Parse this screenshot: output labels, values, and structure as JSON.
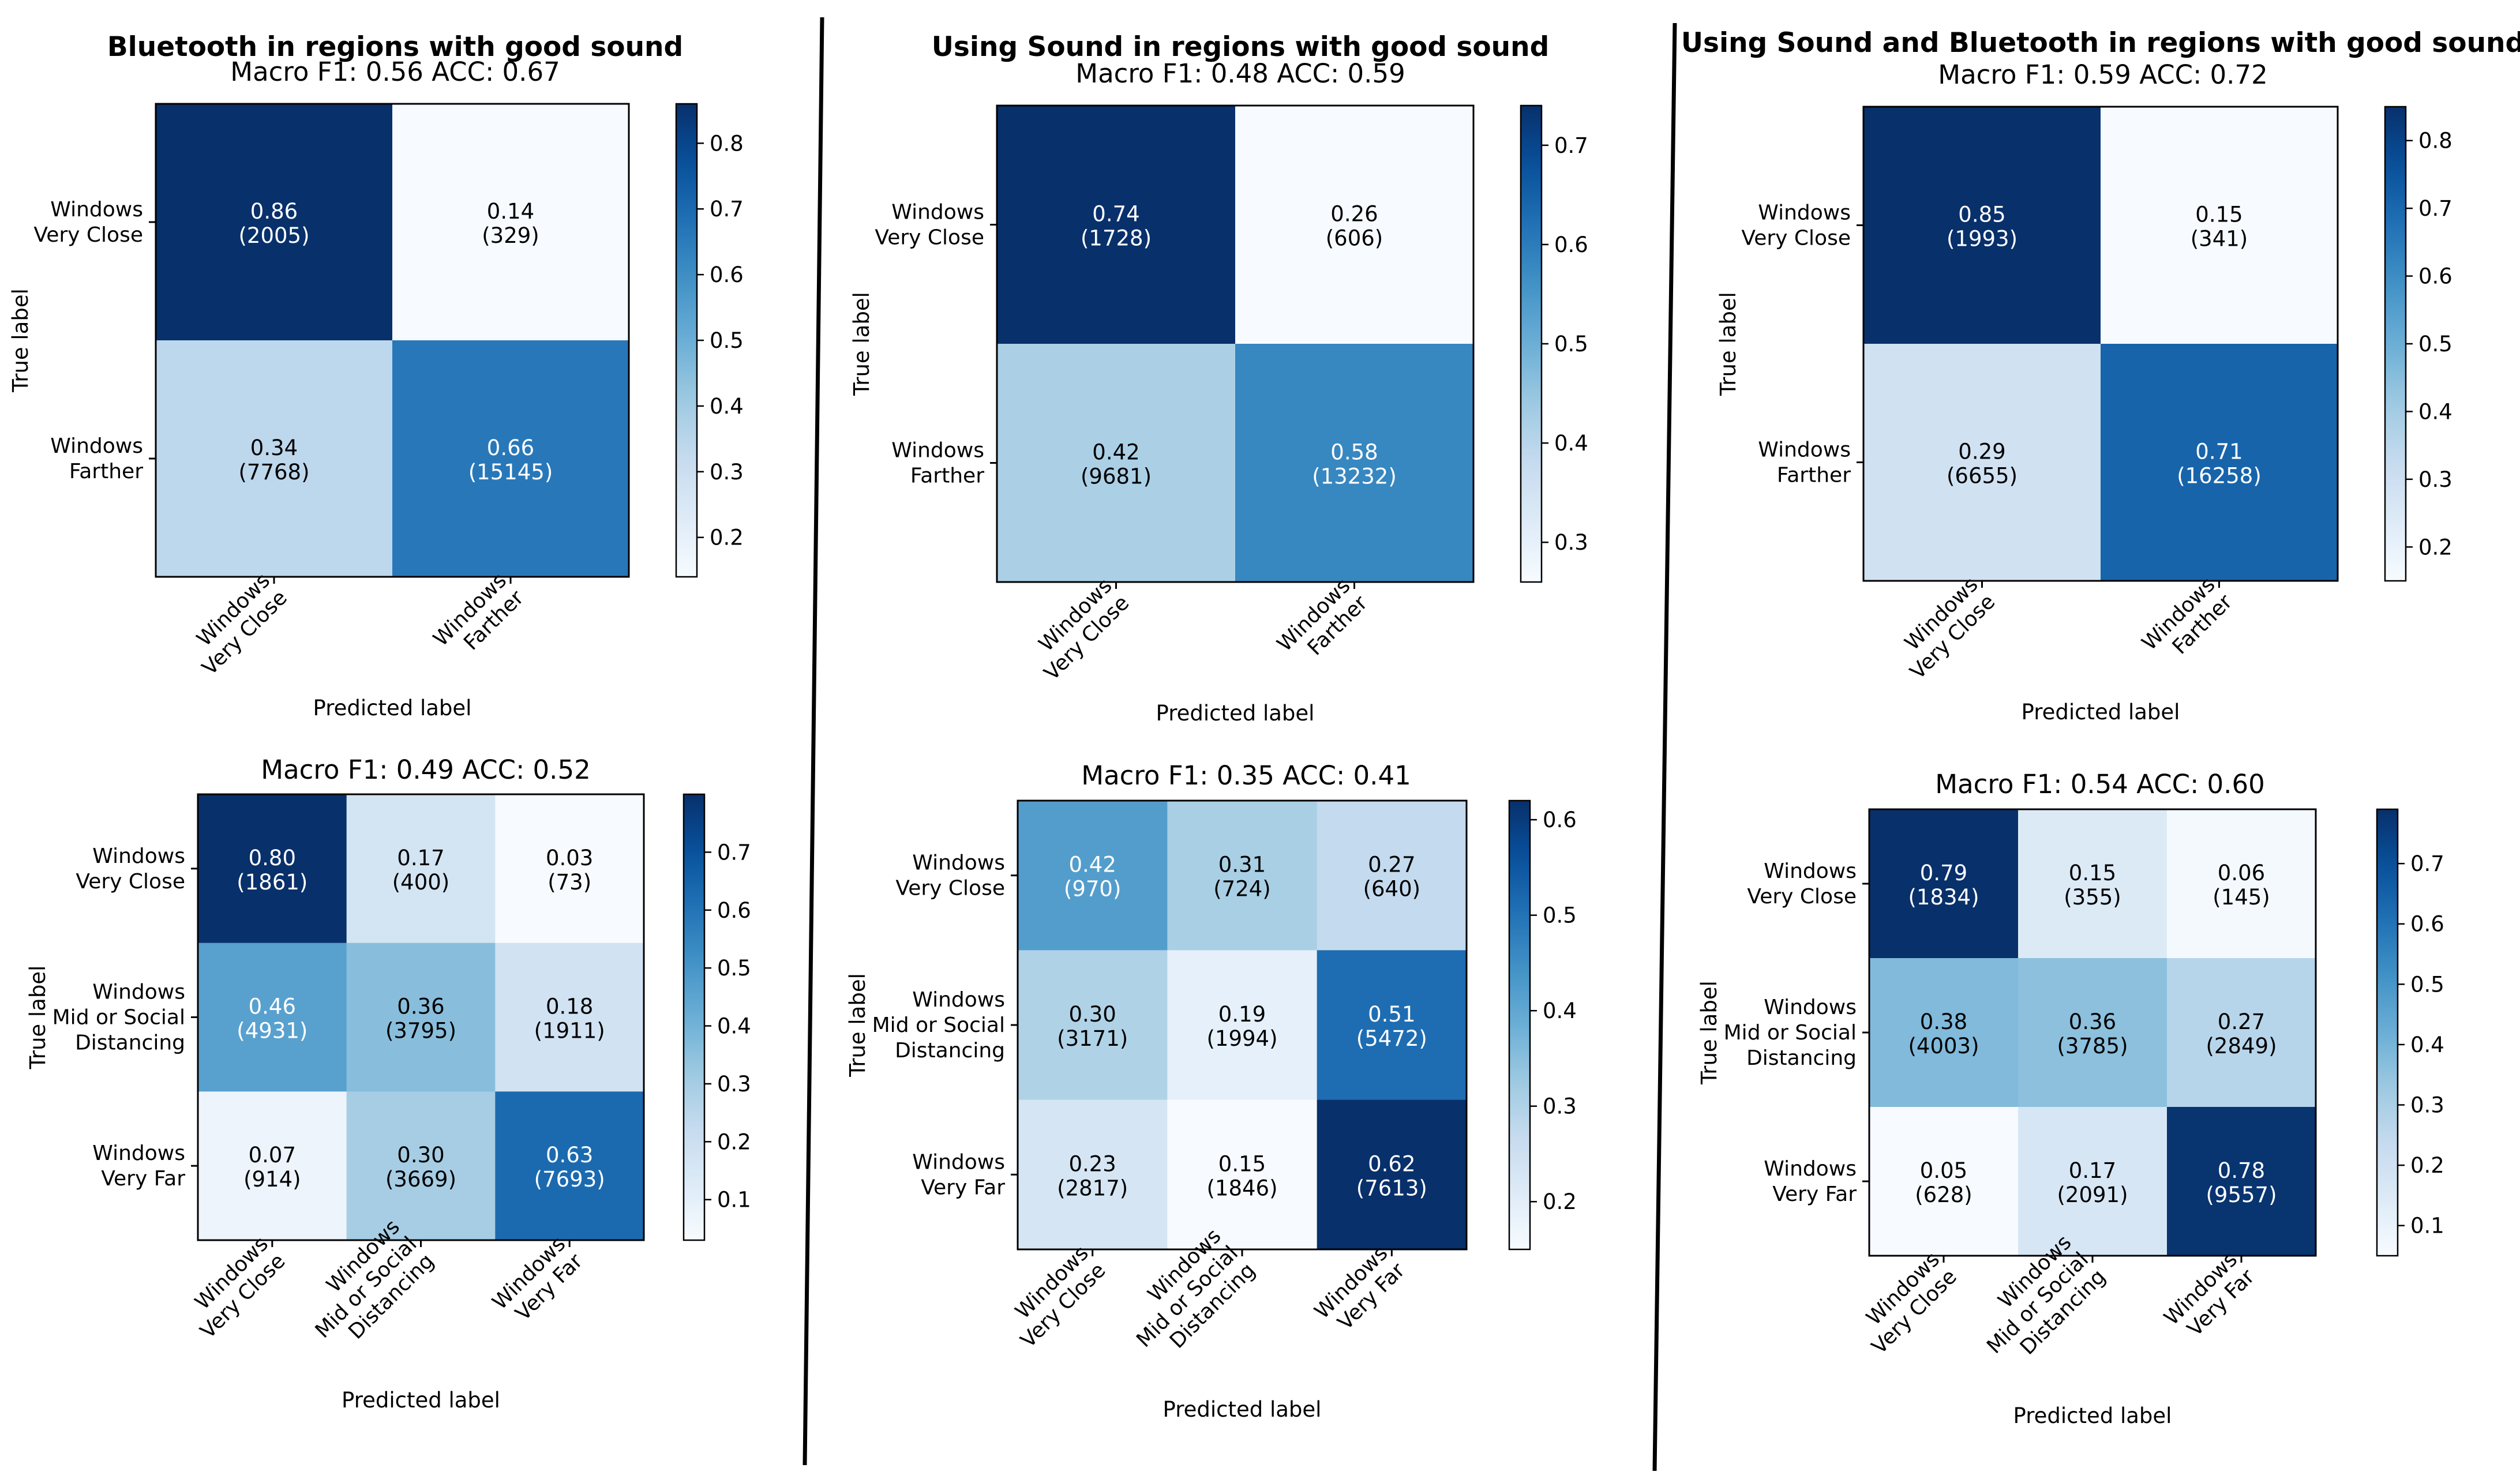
{
  "colormap": [
    "#f7fbff",
    "#deebf7",
    "#c6dbef",
    "#9ecae1",
    "#6baed6",
    "#4292c6",
    "#2171b5",
    "#08519c",
    "#08306b"
  ],
  "chart_data": [
    {
      "type": "heatmap",
      "column_title": "Bluetooth in regions with good sound",
      "title": "Macro F1: 0.56 ACC: 0.67",
      "xlabel": "Predicted label",
      "ylabel": "True label",
      "classes": [
        [
          "Windows",
          "Very Close"
        ],
        [
          "Windows",
          "Farther"
        ]
      ],
      "values": [
        [
          0.86,
          0.14
        ],
        [
          0.34,
          0.66
        ]
      ],
      "value_labels": [
        [
          "0.86",
          "0.14"
        ],
        [
          "0.34",
          "0.66"
        ]
      ],
      "counts": [
        [
          "(2005)",
          "(329)"
        ],
        [
          "(7768)",
          "(15145)"
        ]
      ],
      "vmin": 0.14,
      "vmax": 0.86,
      "colorbar_ticks": [
        "0.2",
        "0.3",
        "0.4",
        "0.5",
        "0.6",
        "0.7",
        "0.8"
      ]
    },
    {
      "type": "heatmap",
      "column_title": "Using Sound in regions with good sound",
      "title": "Macro F1: 0.48 ACC: 0.59",
      "xlabel": "Predicted label",
      "ylabel": "True label",
      "classes": [
        [
          "Windows",
          "Very Close"
        ],
        [
          "Windows",
          "Farther"
        ]
      ],
      "values": [
        [
          0.74,
          0.26
        ],
        [
          0.42,
          0.58
        ]
      ],
      "value_labels": [
        [
          "0.74",
          "0.26"
        ],
        [
          "0.42",
          "0.58"
        ]
      ],
      "counts": [
        [
          "(1728)",
          "(606)"
        ],
        [
          "(9681)",
          "(13232)"
        ]
      ],
      "vmin": 0.26,
      "vmax": 0.74,
      "colorbar_ticks": [
        "0.3",
        "0.4",
        "0.5",
        "0.6",
        "0.7"
      ]
    },
    {
      "type": "heatmap",
      "column_title": "Using Sound and Bluetooth in regions with good sound",
      "title": "Macro F1: 0.59 ACC: 0.72",
      "xlabel": "Predicted label",
      "ylabel": "True label",
      "classes": [
        [
          "Windows",
          "Very Close"
        ],
        [
          "Windows",
          "Farther"
        ]
      ],
      "values": [
        [
          0.85,
          0.15
        ],
        [
          0.29,
          0.71
        ]
      ],
      "value_labels": [
        [
          "0.85",
          "0.15"
        ],
        [
          "0.29",
          "0.71"
        ]
      ],
      "counts": [
        [
          "(1993)",
          "(341)"
        ],
        [
          "(6655)",
          "(16258)"
        ]
      ],
      "vmin": 0.15,
      "vmax": 0.85,
      "colorbar_ticks": [
        "0.2",
        "0.3",
        "0.4",
        "0.5",
        "0.6",
        "0.7",
        "0.8"
      ]
    },
    {
      "type": "heatmap",
      "title": "Macro F1: 0.49 ACC: 0.52",
      "xlabel": "Predicted label",
      "ylabel": "True label",
      "classes": [
        [
          "Windows",
          "Very Close"
        ],
        [
          "Windows",
          "Mid or Social",
          "Distancing"
        ],
        [
          "Windows",
          "Very Far"
        ]
      ],
      "values": [
        [
          0.8,
          0.17,
          0.03
        ],
        [
          0.46,
          0.36,
          0.18
        ],
        [
          0.07,
          0.3,
          0.63
        ]
      ],
      "value_labels": [
        [
          "0.80",
          "0.17",
          "0.03"
        ],
        [
          "0.46",
          "0.36",
          "0.18"
        ],
        [
          "0.07",
          "0.30",
          "0.63"
        ]
      ],
      "counts": [
        [
          "(1861)",
          "(400)",
          "(73)"
        ],
        [
          "(4931)",
          "(3795)",
          "(1911)"
        ],
        [
          "(914)",
          "(3669)",
          "(7693)"
        ]
      ],
      "vmin": 0.03,
      "vmax": 0.8,
      "colorbar_ticks": [
        "0.1",
        "0.2",
        "0.3",
        "0.4",
        "0.5",
        "0.6",
        "0.7"
      ]
    },
    {
      "type": "heatmap",
      "title": "Macro F1: 0.35 ACC: 0.41",
      "xlabel": "Predicted label",
      "ylabel": "True label",
      "classes": [
        [
          "Windows",
          "Very Close"
        ],
        [
          "Windows",
          "Mid or Social",
          "Distancing"
        ],
        [
          "Windows",
          "Very Far"
        ]
      ],
      "values": [
        [
          0.42,
          0.31,
          0.27
        ],
        [
          0.3,
          0.19,
          0.51
        ],
        [
          0.23,
          0.15,
          0.62
        ]
      ],
      "value_labels": [
        [
          "0.42",
          "0.31",
          "0.27"
        ],
        [
          "0.30",
          "0.19",
          "0.51"
        ],
        [
          "0.23",
          "0.15",
          "0.62"
        ]
      ],
      "counts": [
        [
          "(970)",
          "(724)",
          "(640)"
        ],
        [
          "(3171)",
          "(1994)",
          "(5472)"
        ],
        [
          "(2817)",
          "(1846)",
          "(7613)"
        ]
      ],
      "vmin": 0.15,
      "vmax": 0.62,
      "colorbar_ticks": [
        "0.2",
        "0.3",
        "0.4",
        "0.5",
        "0.6"
      ]
    },
    {
      "type": "heatmap",
      "title": "Macro F1: 0.54 ACC: 0.60",
      "xlabel": "Predicted label",
      "ylabel": "True label",
      "classes": [
        [
          "Windows",
          "Very Close"
        ],
        [
          "Windows",
          "Mid or Social",
          "Distancing"
        ],
        [
          "Windows",
          "Very Far"
        ]
      ],
      "values": [
        [
          0.79,
          0.15,
          0.06
        ],
        [
          0.38,
          0.36,
          0.27
        ],
        [
          0.05,
          0.17,
          0.78
        ]
      ],
      "value_labels": [
        [
          "0.79",
          "0.15",
          "0.06"
        ],
        [
          "0.38",
          "0.36",
          "0.27"
        ],
        [
          "0.05",
          "0.17",
          "0.78"
        ]
      ],
      "counts": [
        [
          "(1834)",
          "(355)",
          "(145)"
        ],
        [
          "(4003)",
          "(3785)",
          "(2849)"
        ],
        [
          "(628)",
          "(2091)",
          "(9557)"
        ]
      ],
      "vmin": 0.05,
      "vmax": 0.79,
      "colorbar_ticks": [
        "0.1",
        "0.2",
        "0.3",
        "0.4",
        "0.5",
        "0.6",
        "0.7"
      ]
    }
  ]
}
